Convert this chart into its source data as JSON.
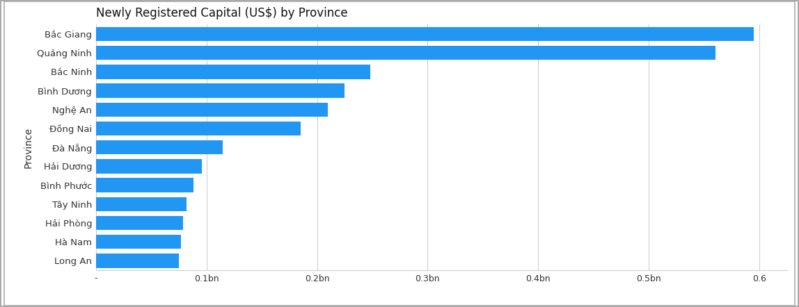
{
  "title": "Newly Registered Capital (US$) by Province",
  "xlabel": "",
  "ylabel": "Province",
  "provinces": [
    "Long An",
    "Hà Nam",
    "Hải Phòng",
    "Tây Ninh",
    "Bình Phước",
    "Hải Dương",
    "Đà Nẵng",
    "Đồng Nai",
    "Nghệ An",
    "Bình Dương",
    "Bắc Ninh",
    "Quảng Ninh",
    "Bắc Giang"
  ],
  "values": [
    0.075,
    0.077,
    0.079,
    0.082,
    0.088,
    0.096,
    0.115,
    0.185,
    0.21,
    0.225,
    0.248,
    0.56,
    0.595
  ],
  "bar_color": "#2196F3",
  "xlim": [
    0,
    0.625
  ],
  "xtick_values": [
    0,
    0.1,
    0.2,
    0.3,
    0.4,
    0.5,
    0.6
  ],
  "xtick_labels": [
    "-",
    "0.1bn",
    "0.2bn",
    "0.3bn",
    "0.4bn",
    "0.5bn",
    "0.6"
  ],
  "title_fontsize": 12,
  "label_fontsize": 9.5,
  "tick_fontsize": 9,
  "ylabel_fontsize": 10,
  "background_color": "#ffffff",
  "frame_color": "#aaaaaa",
  "grid_color": "#d0d0d0",
  "bar_height": 0.75
}
